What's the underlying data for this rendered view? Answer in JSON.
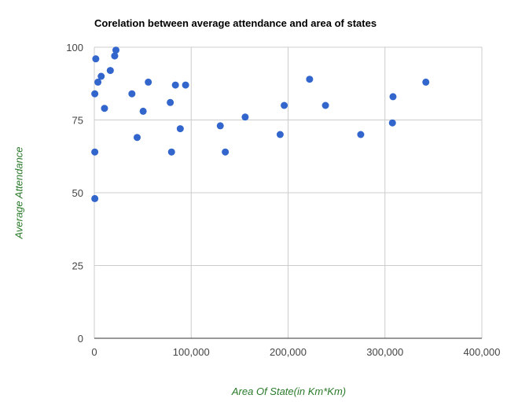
{
  "chart_data": {
    "type": "scatter",
    "title": "Corelation between average attendance and area of states",
    "xlabel": "Area Of State(in Km*Km)",
    "ylabel": "Average Attendance",
    "xlim": [
      0,
      400000
    ],
    "ylim": [
      0,
      100
    ],
    "x_ticks": [
      0,
      100000,
      200000,
      300000,
      400000
    ],
    "x_tick_labels": [
      "0",
      "100,000",
      "200,000",
      "300,000",
      "400,000"
    ],
    "y_ticks": [
      0,
      25,
      50,
      75,
      100
    ],
    "y_tick_labels": [
      "0",
      "25",
      "50",
      "75",
      "100"
    ],
    "grid": true,
    "legend": "none",
    "point_color": "#3366cc",
    "points": [
      {
        "x": 500,
        "y": 48
      },
      {
        "x": 500,
        "y": 64
      },
      {
        "x": 500,
        "y": 84
      },
      {
        "x": 1500,
        "y": 96
      },
      {
        "x": 3700,
        "y": 88
      },
      {
        "x": 7100,
        "y": 90
      },
      {
        "x": 10500,
        "y": 79
      },
      {
        "x": 16500,
        "y": 92
      },
      {
        "x": 21000,
        "y": 97
      },
      {
        "x": 22300,
        "y": 99
      },
      {
        "x": 38800,
        "y": 84
      },
      {
        "x": 44200,
        "y": 69
      },
      {
        "x": 50400,
        "y": 78
      },
      {
        "x": 55700,
        "y": 88
      },
      {
        "x": 78400,
        "y": 81
      },
      {
        "x": 79700,
        "y": 64
      },
      {
        "x": 83700,
        "y": 87
      },
      {
        "x": 88700,
        "y": 72
      },
      {
        "x": 94200,
        "y": 87
      },
      {
        "x": 130000,
        "y": 73
      },
      {
        "x": 135200,
        "y": 64
      },
      {
        "x": 155700,
        "y": 76
      },
      {
        "x": 191800,
        "y": 70
      },
      {
        "x": 196000,
        "y": 80
      },
      {
        "x": 222200,
        "y": 89
      },
      {
        "x": 238600,
        "y": 80
      },
      {
        "x": 275000,
        "y": 70
      },
      {
        "x": 307700,
        "y": 74
      },
      {
        "x": 308300,
        "y": 83
      },
      {
        "x": 342200,
        "y": 88
      }
    ]
  }
}
